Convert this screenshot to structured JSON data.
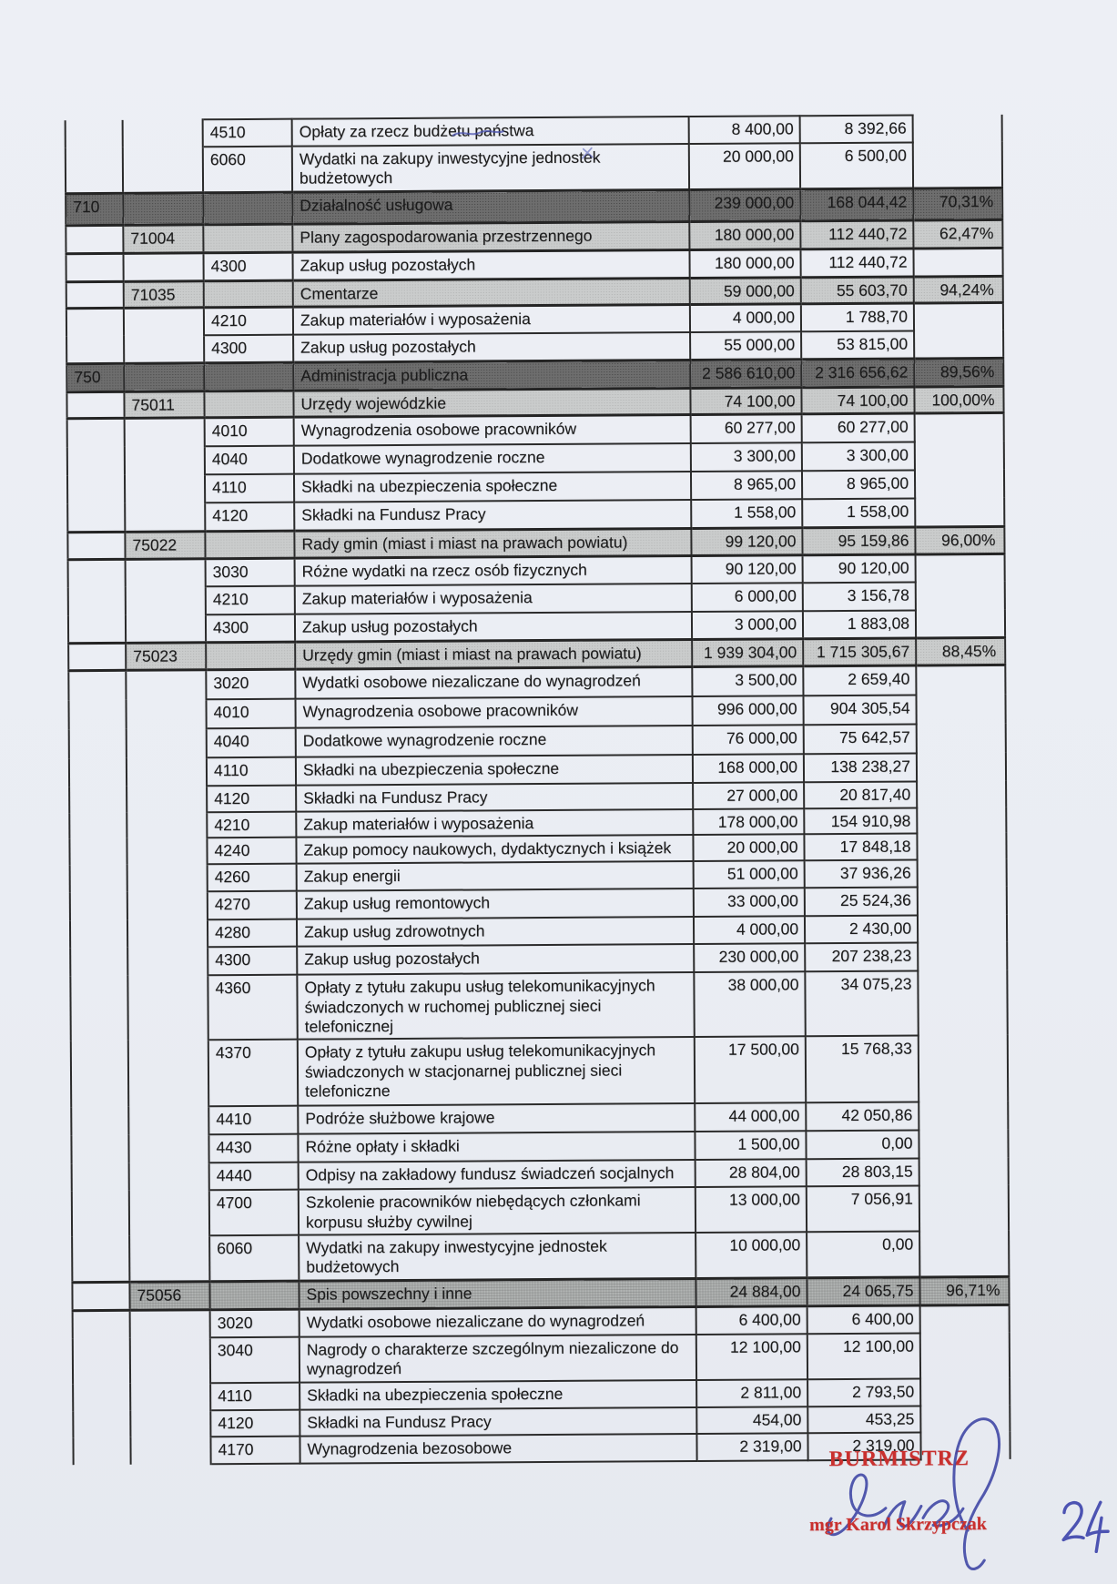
{
  "document": {
    "kind": "scanned budget execution table (Polish municipal budget)",
    "page_number": "24",
    "signature": {
      "title": "BURMISTRZ",
      "name": "mgr Karol Skrzypczak"
    },
    "colors": {
      "paper": "#eceef4",
      "table_line": "#2b2b2b",
      "dzial_bar": "#6e6e6e",
      "rozdzial_bar": "#cacccc",
      "rozdzial_bar_dark": "#b2b5b4",
      "stamp_red": "#c9302e",
      "ink_blue": "#4149a6"
    }
  },
  "table": {
    "columns": [
      "dzial",
      "rozdzial",
      "paragraf",
      "nazwa",
      "plan",
      "wykonanie",
      "procent"
    ],
    "rows": [
      {
        "level": "paragraf",
        "code": "4510",
        "nazwa": "Opłaty za rzecz budżetu państwa",
        "plan": "8 400,00",
        "wykonanie": "8 392,66",
        "procent": ""
      },
      {
        "level": "paragraf",
        "code": "6060",
        "nazwa": "Wydatki na zakupy inwestycyjne jednostek budżetowych",
        "plan": "20 000,00",
        "wykonanie": "6 500,00",
        "procent": ""
      },
      {
        "level": "dzial",
        "code": "710",
        "nazwa": "Działalność usługowa",
        "plan": "239 000,00",
        "wykonanie": "168 044,42",
        "procent": "70,31%"
      },
      {
        "level": "rozdzial",
        "code": "71004",
        "nazwa": "Plany zagospodarowania przestrzennego",
        "plan": "180 000,00",
        "wykonanie": "112 440,72",
        "procent": "62,47%"
      },
      {
        "level": "paragraf",
        "code": "4300",
        "nazwa": "Zakup usług pozostałych",
        "plan": "180 000,00",
        "wykonanie": "112 440,72",
        "procent": ""
      },
      {
        "level": "rozdzial",
        "code": "71035",
        "nazwa": "Cmentarze",
        "plan": "59 000,00",
        "wykonanie": "55 603,70",
        "procent": "94,24%"
      },
      {
        "level": "paragraf",
        "code": "4210",
        "nazwa": "Zakup materiałów i wyposażenia",
        "plan": "4 000,00",
        "wykonanie": "1 788,70",
        "procent": ""
      },
      {
        "level": "paragraf",
        "code": "4300",
        "nazwa": "Zakup usług pozostałych",
        "plan": "55 000,00",
        "wykonanie": "53 815,00",
        "procent": ""
      },
      {
        "level": "dzial",
        "code": "750",
        "nazwa": "Administracja publiczna",
        "plan": "2 586 610,00",
        "wykonanie": "2 316 656,62",
        "procent": "89,56%"
      },
      {
        "level": "rozdzial",
        "code": "75011",
        "nazwa": "Urzędy wojewódzkie",
        "plan": "74 100,00",
        "wykonanie": "74 100,00",
        "procent": "100,00%"
      },
      {
        "level": "paragraf",
        "code": "4010",
        "nazwa": "Wynagrodzenia osobowe pracowników",
        "plan": "60 277,00",
        "wykonanie": "60 277,00",
        "procent": ""
      },
      {
        "level": "paragraf",
        "code": "4040",
        "nazwa": "Dodatkowe wynagrodzenie roczne",
        "plan": "3 300,00",
        "wykonanie": "3 300,00",
        "procent": ""
      },
      {
        "level": "paragraf",
        "code": "4110",
        "nazwa": "Składki na ubezpieczenia społeczne",
        "plan": "8 965,00",
        "wykonanie": "8 965,00",
        "procent": ""
      },
      {
        "level": "paragraf",
        "code": "4120",
        "nazwa": "Składki na Fundusz Pracy",
        "plan": "1 558,00",
        "wykonanie": "1 558,00",
        "procent": ""
      },
      {
        "level": "rozdzial",
        "code": "75022",
        "nazwa": "Rady gmin (miast i miast na prawach powiatu)",
        "plan": "99 120,00",
        "wykonanie": "95 159,86",
        "procent": "96,00%"
      },
      {
        "level": "paragraf",
        "code": "3030",
        "nazwa": "Różne wydatki na rzecz osób fizycznych",
        "plan": "90 120,00",
        "wykonanie": "90 120,00",
        "procent": ""
      },
      {
        "level": "paragraf",
        "code": "4210",
        "nazwa": "Zakup materiałów i wyposażenia",
        "plan": "6 000,00",
        "wykonanie": "3 156,78",
        "procent": ""
      },
      {
        "level": "paragraf",
        "code": "4300",
        "nazwa": "Zakup usług pozostałych",
        "plan": "3 000,00",
        "wykonanie": "1 883,08",
        "procent": ""
      },
      {
        "level": "rozdzial",
        "code": "75023",
        "nazwa": "Urzędy gmin (miast i miast na prawach powiatu)",
        "plan": "1 939 304,00",
        "wykonanie": "1 715 305,67",
        "procent": "88,45%"
      },
      {
        "level": "paragraf",
        "code": "3020",
        "nazwa": "Wydatki osobowe niezaliczane do wynagrodzeń",
        "plan": "3 500,00",
        "wykonanie": "2 659,40",
        "procent": ""
      },
      {
        "level": "paragraf",
        "code": "4010",
        "nazwa": "Wynagrodzenia osobowe pracowników",
        "plan": "996 000,00",
        "wykonanie": "904 305,54",
        "procent": ""
      },
      {
        "level": "paragraf",
        "code": "4040",
        "nazwa": "Dodatkowe wynagrodzenie roczne",
        "plan": "76 000,00",
        "wykonanie": "75 642,57",
        "procent": ""
      },
      {
        "level": "paragraf",
        "code": "4110",
        "nazwa": "Składki na ubezpieczenia społeczne",
        "plan": "168 000,00",
        "wykonanie": "138 238,27",
        "procent": ""
      },
      {
        "level": "paragraf",
        "code": "4120",
        "nazwa": "Składki na Fundusz Pracy",
        "plan": "27 000,00",
        "wykonanie": "20 817,40",
        "procent": ""
      },
      {
        "level": "paragraf",
        "code": "4210",
        "nazwa": "Zakup materiałów i wyposażenia",
        "plan": "178 000,00",
        "wykonanie": "154 910,98",
        "procent": ""
      },
      {
        "level": "paragraf",
        "code": "4240",
        "nazwa": "Zakup pomocy naukowych, dydaktycznych i książek",
        "plan": "20 000,00",
        "wykonanie": "17 848,18",
        "procent": ""
      },
      {
        "level": "paragraf",
        "code": "4260",
        "nazwa": "Zakup energii",
        "plan": "51 000,00",
        "wykonanie": "37 936,26",
        "procent": ""
      },
      {
        "level": "paragraf",
        "code": "4270",
        "nazwa": "Zakup usług remontowych",
        "plan": "33 000,00",
        "wykonanie": "25 524,36",
        "procent": ""
      },
      {
        "level": "paragraf",
        "code": "4280",
        "nazwa": "Zakup usług zdrowotnych",
        "plan": "4 000,00",
        "wykonanie": "2 430,00",
        "procent": ""
      },
      {
        "level": "paragraf",
        "code": "4300",
        "nazwa": "Zakup usług pozostałych",
        "plan": "230 000,00",
        "wykonanie": "207 238,23",
        "procent": ""
      },
      {
        "level": "paragraf",
        "code": "4360",
        "nazwa": "Opłaty z tytułu zakupu usług telekomunikacyjnych świadczonych w ruchomej publicznej sieci telefonicznej",
        "plan": "38 000,00",
        "wykonanie": "34 075,23",
        "procent": ""
      },
      {
        "level": "paragraf",
        "code": "4370",
        "nazwa": "Opłaty z tytułu zakupu usług telekomunikacyjnych świadczonych w stacjonarnej publicznej sieci telefoniczne",
        "plan": "17 500,00",
        "wykonanie": "15 768,33",
        "procent": ""
      },
      {
        "level": "paragraf",
        "code": "4410",
        "nazwa": "Podróże służbowe krajowe",
        "plan": "44 000,00",
        "wykonanie": "42 050,86",
        "procent": ""
      },
      {
        "level": "paragraf",
        "code": "4430",
        "nazwa": "Różne opłaty i składki",
        "plan": "1 500,00",
        "wykonanie": "0,00",
        "procent": ""
      },
      {
        "level": "paragraf",
        "code": "4440",
        "nazwa": "Odpisy na zakładowy fundusz świadczeń socjalnych",
        "plan": "28 804,00",
        "wykonanie": "28 803,15",
        "procent": ""
      },
      {
        "level": "paragraf",
        "code": "4700",
        "nazwa": "Szkolenie pracowników niebędących członkami korpusu służby cywilnej",
        "plan": "13 000,00",
        "wykonanie": "7 056,91",
        "procent": ""
      },
      {
        "level": "paragraf",
        "code": "6060",
        "nazwa": "Wydatki na zakupy inwestycyjne jednostek budżetowych",
        "plan": "10 000,00",
        "wykonanie": "0,00",
        "procent": ""
      },
      {
        "level": "rozdzial",
        "code": "75056",
        "nazwa": "Spis powszechny i inne",
        "plan": "24 884,00",
        "wykonanie": "24 065,75",
        "procent": "96,71%",
        "shade": "dark"
      },
      {
        "level": "paragraf",
        "code": "3020",
        "nazwa": "Wydatki osobowe niezaliczane do wynagrodzeń",
        "plan": "6 400,00",
        "wykonanie": "6 400,00",
        "procent": ""
      },
      {
        "level": "paragraf",
        "code": "3040",
        "nazwa": "Nagrody o charakterze szczególnym niezaliczone do wynagrodzeń",
        "plan": "12 100,00",
        "wykonanie": "12 100,00",
        "procent": ""
      },
      {
        "level": "paragraf",
        "code": "4110",
        "nazwa": "Składki na ubezpieczenia społeczne",
        "plan": "2 811,00",
        "wykonanie": "2 793,50",
        "procent": ""
      },
      {
        "level": "paragraf",
        "code": "4120",
        "nazwa": "Składki na Fundusz Pracy",
        "plan": "454,00",
        "wykonanie": "453,25",
        "procent": ""
      },
      {
        "level": "paragraf",
        "code": "4170",
        "nazwa": "Wynagrodzenia bezosobowe",
        "plan": "2 319,00",
        "wykonanie": "2 319,00",
        "procent": ""
      }
    ]
  }
}
